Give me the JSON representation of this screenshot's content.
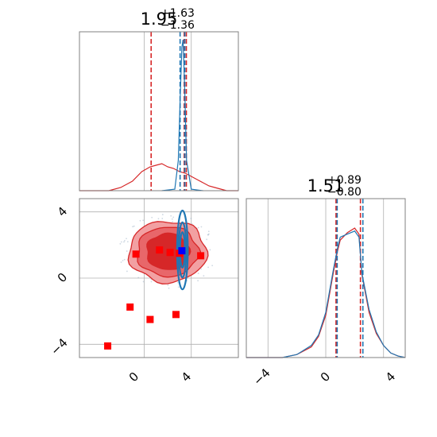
{
  "colors": {
    "red": "#d62728",
    "red_fill_light": "#f2a0a2",
    "red_fill_mid": "#e8676a",
    "red_fill_dark": "#d62728",
    "blue": "#1f77b4",
    "marker_red": "#ff0000",
    "marker_blue": "#0000ff",
    "grid": "#b0b0b0",
    "frame": "#808080"
  },
  "chart_data": [
    {
      "panel": "top-left",
      "type": "line",
      "subtype": "marginal-histogram",
      "title": {
        "main": "1.95",
        "sup": "+1.63",
        "sub": "−1.36"
      },
      "xlim": [
        -5.5,
        8.0
      ],
      "grid": true,
      "series": [
        {
          "color": "#d62728",
          "x": [
            -5.5,
            -3.0,
            -2.0,
            -1.0,
            -0.2,
            0.5,
            1.0,
            1.5,
            2.0,
            2.5,
            3.0,
            3.5,
            4.0,
            4.5,
            5.0,
            5.5,
            6.0,
            6.5,
            7.0,
            8.0
          ],
          "values": [
            0.0,
            0.0,
            0.02,
            0.06,
            0.12,
            0.15,
            0.16,
            0.17,
            0.15,
            0.14,
            0.12,
            0.11,
            0.09,
            0.07,
            0.05,
            0.03,
            0.02,
            0.01,
            0.0,
            0.0
          ],
          "quantile_lines": [
            0.59,
            3.4,
            3.58
          ]
        },
        {
          "color": "#1f77b4",
          "x": [
            1.5,
            2.6,
            2.9,
            3.05,
            3.2,
            3.3,
            3.45,
            3.6,
            4.0,
            5.0
          ],
          "values": [
            0.0,
            0.01,
            0.2,
            0.6,
            0.95,
            1.0,
            0.65,
            0.2,
            0.01,
            0.0
          ],
          "quantile_lines": [
            3.05,
            3.45
          ]
        }
      ]
    },
    {
      "panel": "bottom-left",
      "type": "scatter",
      "subtype": "2d-contour",
      "xlim": [
        -5.5,
        8.0
      ],
      "ylim": [
        -4.8,
        4.8
      ],
      "x_ticks": [
        "0",
        "4"
      ],
      "y_ticks": [
        "4",
        "0",
        "−4"
      ],
      "grid": true,
      "contour_red": {
        "center": [
          2.0,
          1.6
        ],
        "level_radii": [
          [
            1.8,
            1.1
          ],
          [
            2.6,
            1.5
          ],
          [
            3.3,
            1.85
          ]
        ]
      },
      "contour_blue": {
        "center": [
          3.25,
          1.7
        ],
        "radius": [
          0.35,
          1.7
        ]
      },
      "red_markers": {
        "x": [
          -3.1,
          -1.2,
          -0.7,
          0.5,
          1.3,
          2.2,
          2.7,
          3.0,
          4.8
        ],
        "y": [
          -4.1,
          -1.75,
          1.45,
          -2.5,
          1.7,
          1.55,
          -2.2,
          1.5,
          1.35
        ]
      },
      "blue_markers": {
        "x": [
          3.2
        ],
        "y": [
          1.65
        ]
      }
    },
    {
      "panel": "bottom-right",
      "type": "line",
      "subtype": "marginal-histogram",
      "title": {
        "main": "1.51",
        "sup": "+0.89",
        "sub": "−0.80"
      },
      "xlim": [
        -5.5,
        5.5
      ],
      "x_ticks": [
        "−4",
        "0",
        "4"
      ],
      "grid": true,
      "series": [
        {
          "color": "#d62728",
          "x": [
            -5.5,
            -3.0,
            -2.0,
            -1.0,
            -0.5,
            0.0,
            0.5,
            0.8,
            1.0,
            1.5,
            2.0,
            2.3,
            2.5,
            3.0,
            3.5,
            4.0,
            4.5,
            5.0,
            5.5
          ],
          "values": [
            0.0,
            0.0,
            0.02,
            0.07,
            0.14,
            0.28,
            0.55,
            0.7,
            0.78,
            0.83,
            0.86,
            0.82,
            0.55,
            0.3,
            0.16,
            0.08,
            0.03,
            0.01,
            0.0
          ],
          "quantile_lines": [
            0.71,
            2.4
          ]
        },
        {
          "color": "#1f77b4",
          "x": [
            -5.5,
            -3.0,
            -2.0,
            -1.0,
            -0.5,
            0.0,
            0.5,
            0.8,
            1.0,
            1.5,
            2.0,
            2.3,
            2.5,
            3.0,
            3.5,
            4.0,
            4.5,
            5.0,
            5.5
          ],
          "values": [
            0.0,
            0.0,
            0.02,
            0.08,
            0.15,
            0.3,
            0.57,
            0.72,
            0.8,
            0.82,
            0.84,
            0.8,
            0.56,
            0.32,
            0.17,
            0.08,
            0.03,
            0.01,
            0.0
          ],
          "quantile_lines": [
            0.79,
            2.57
          ]
        }
      ]
    }
  ]
}
